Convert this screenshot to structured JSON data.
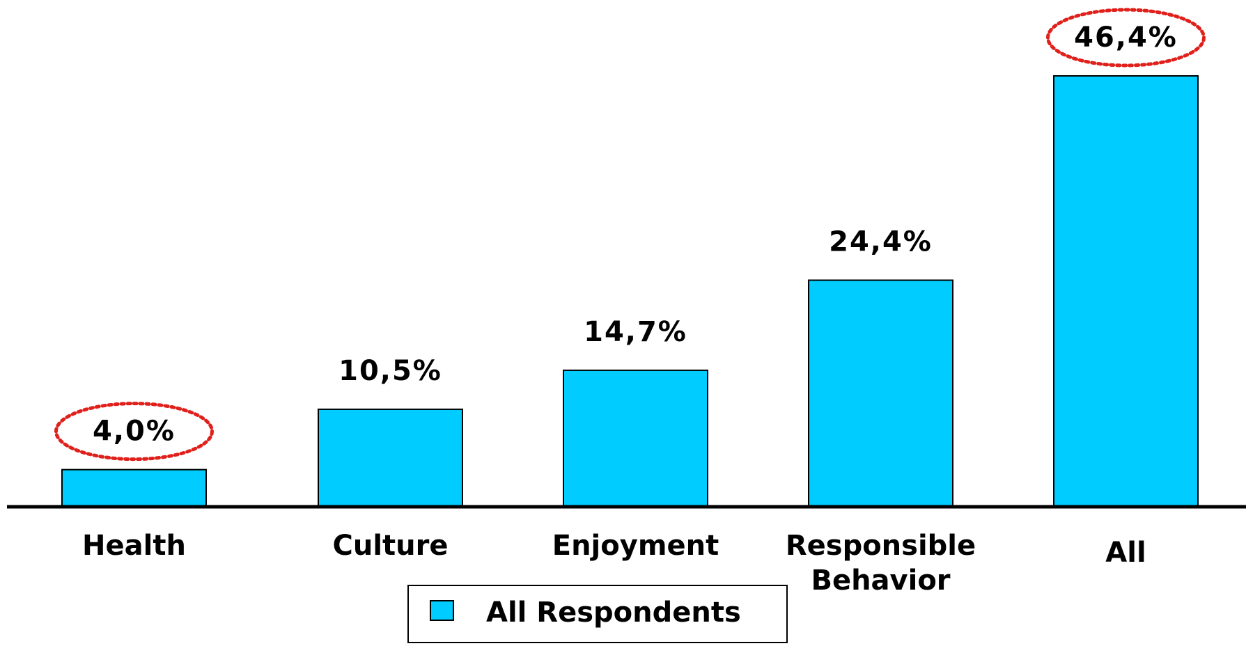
{
  "chart_data": {
    "type": "bar",
    "categories": [
      [
        "Health"
      ],
      [
        "Culture"
      ],
      [
        "Enjoyment"
      ],
      [
        "Responsible",
        "Behavior"
      ],
      [
        "All"
      ]
    ],
    "series": [
      {
        "name": "All Respondents",
        "values": [
          4.0,
          10.5,
          14.7,
          24.4,
          46.4
        ],
        "labels": [
          "4,0%",
          "10,5%",
          "14,7%",
          "24,4%",
          "46,4%"
        ]
      }
    ],
    "ylim": [
      0,
      50
    ],
    "grid": false,
    "legend_position": "bottom-center",
    "highlighted": [
      0,
      4
    ]
  },
  "colors": {
    "bar": "#00CCFF",
    "bar_stroke": "#000000",
    "axis": "#000000",
    "highlight": "#E0201B",
    "legend_border": "#000000"
  }
}
